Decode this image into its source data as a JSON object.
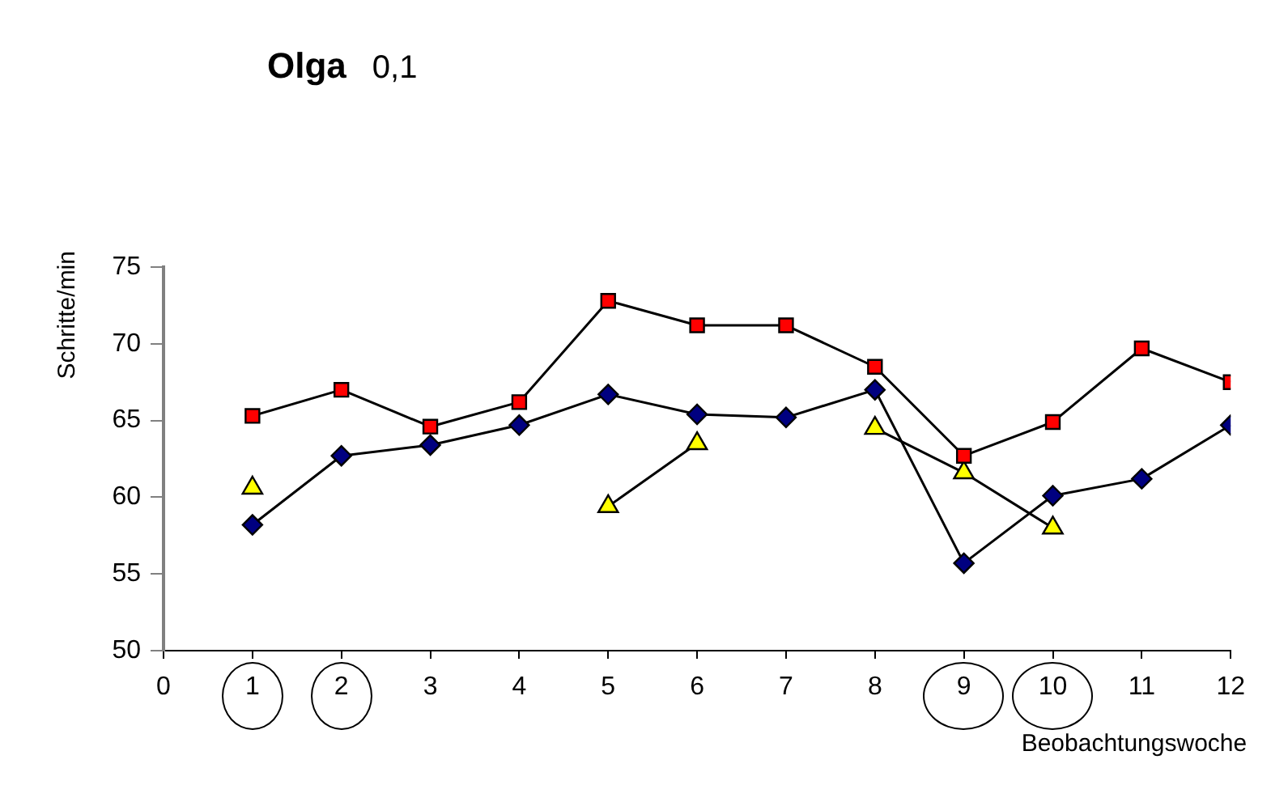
{
  "chart_data": {
    "type": "line",
    "title": "Olga",
    "subtitle": "0,1",
    "xlabel": "Beobachtungswoche",
    "ylabel": "Schritte/min",
    "x": [
      1,
      2,
      3,
      4,
      5,
      6,
      7,
      8,
      9,
      10,
      11,
      12
    ],
    "series": [
      {
        "color": "#ff0000",
        "marker": "square",
        "values": [
          65.3,
          67.0,
          64.6,
          66.2,
          72.8,
          71.2,
          71.2,
          68.5,
          62.7,
          64.9,
          69.7,
          67.5
        ]
      },
      {
        "color": "#000080",
        "marker": "diamond",
        "values": [
          58.2,
          62.7,
          63.4,
          64.7,
          66.7,
          65.4,
          65.2,
          67.0,
          55.7,
          60.1,
          61.2,
          64.7
        ]
      },
      {
        "color": "#ffff00",
        "marker": "triangle",
        "values": [
          60.6,
          null,
          null,
          null,
          59.4,
          63.5,
          null,
          64.5,
          61.6,
          58.0,
          null,
          null
        ]
      }
    ],
    "xlim": [
      0,
      12
    ],
    "xticks": [
      0,
      1,
      2,
      3,
      4,
      5,
      6,
      7,
      8,
      9,
      10,
      11,
      12
    ],
    "ylim": [
      50,
      75
    ],
    "yticks": [
      50,
      55,
      60,
      65,
      70,
      75
    ],
    "grid": false,
    "legend": false,
    "line_style": "solid"
  }
}
